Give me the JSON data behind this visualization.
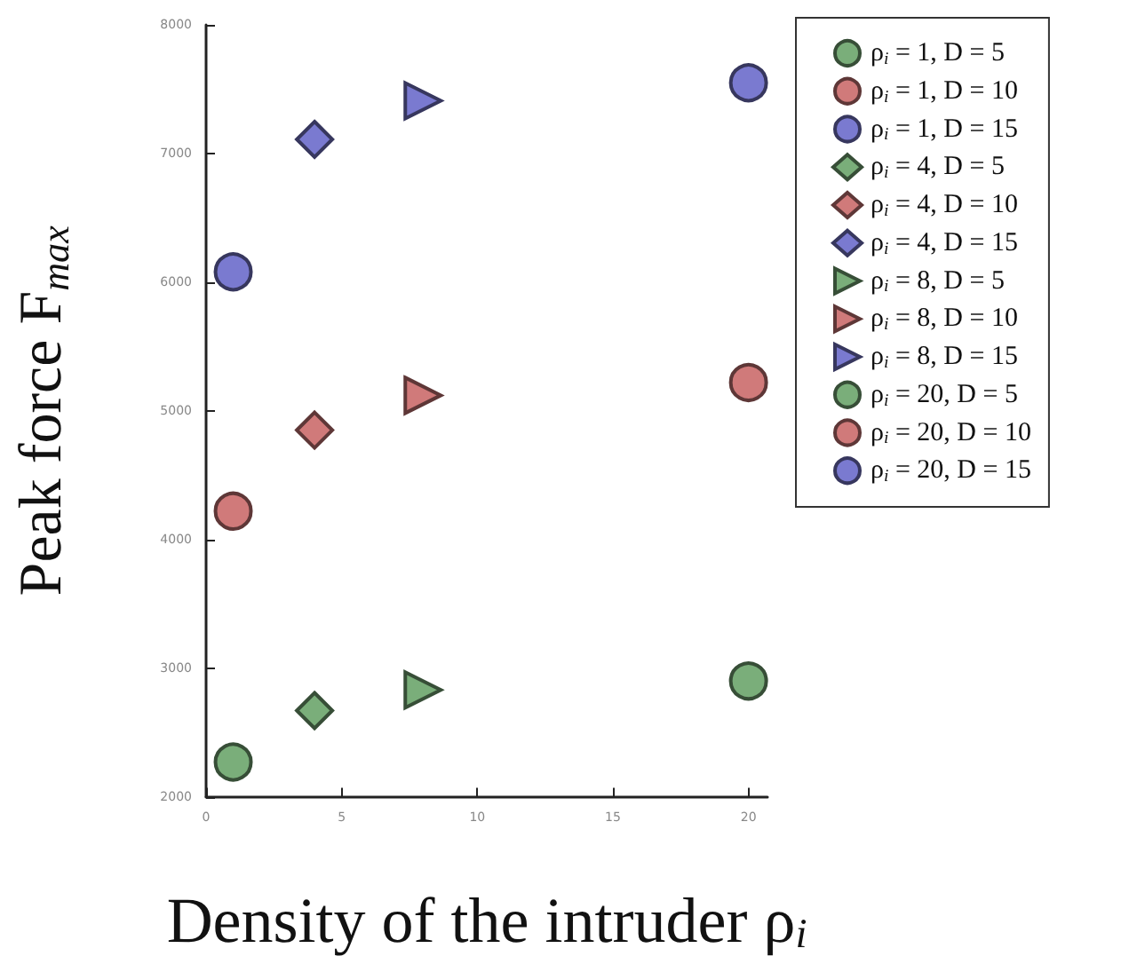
{
  "chart_data": {
    "type": "scatter",
    "xlabel": "Density of the intruder ρ$_{i}$",
    "ylabel": "Peak force F$_{max}$",
    "xlim": [
      0,
      20.7
    ],
    "xticks": [
      0,
      5,
      10,
      15,
      20
    ],
    "ylim": [
      2000,
      8000
    ],
    "yticks": [
      2000,
      3000,
      4000,
      5000,
      6000,
      7000,
      8000
    ],
    "grid": false,
    "legend": "top right",
    "series": [
      {
        "name": "ρ$_{i}$ = 1, D = 5",
        "color": "#7aae7a",
        "marker": "circle",
        "x": [
          1
        ],
        "values": [
          2270
        ]
      },
      {
        "name": "ρ$_{i}$ = 1, D = 10",
        "color": "#d07a7a",
        "marker": "circle",
        "x": [
          1
        ],
        "values": [
          4220
        ]
      },
      {
        "name": "ρ$_{i}$ = 1, D = 15",
        "color": "#7a7ad0",
        "marker": "circle",
        "x": [
          1
        ],
        "values": [
          6080
        ]
      },
      {
        "name": "ρ$_{i}$ = 4, D = 5",
        "color": "#7aae7a",
        "marker": "diamond",
        "x": [
          4
        ],
        "values": [
          2670
        ]
      },
      {
        "name": "ρ$_{i}$ = 4, D = 10",
        "color": "#d07a7a",
        "marker": "diamond",
        "x": [
          4
        ],
        "values": [
          4850
        ]
      },
      {
        "name": "ρ$_{i}$ = 4, D = 15",
        "color": "#7a7ad0",
        "marker": "diamond",
        "x": [
          4
        ],
        "values": [
          7110
        ]
      },
      {
        "name": "ρ$_{i}$ = 8, D = 5",
        "color": "#7aae7a",
        "marker": "triangle",
        "x": [
          8
        ],
        "values": [
          2830
        ]
      },
      {
        "name": "ρ$_{i}$ = 8, D = 10",
        "color": "#d07a7a",
        "marker": "triangle",
        "x": [
          8
        ],
        "values": [
          5120
        ]
      },
      {
        "name": "ρ$_{i}$ = 8, D = 15",
        "color": "#7a7ad0",
        "marker": "triangle",
        "x": [
          8
        ],
        "values": [
          7410
        ]
      },
      {
        "name": "ρ$_{i}$ = 20, D = 5",
        "color": "#7aae7a",
        "marker": "circle",
        "x": [
          20
        ],
        "values": [
          2900
        ]
      },
      {
        "name": "ρ$_{i}$ = 20, D = 10",
        "color": "#d07a7a",
        "marker": "circle",
        "x": [
          20
        ],
        "values": [
          5220
        ]
      },
      {
        "name": "ρ$_{i}$ = 20, D = 15",
        "color": "#7a7ad0",
        "marker": "circle",
        "x": [
          20
        ],
        "values": [
          7550
        ]
      }
    ]
  }
}
